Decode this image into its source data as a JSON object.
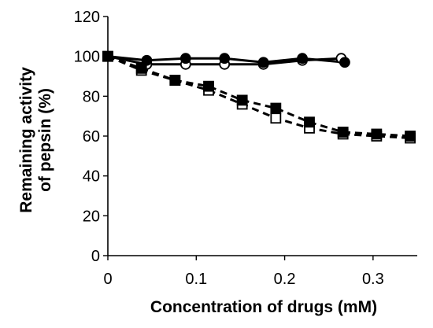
{
  "chart_data": {
    "type": "line",
    "xlabel": "Concentration of drugs (mM)",
    "ylabel_lines": [
      "Remaining activity",
      "of pepsin (%)"
    ],
    "xlim": [
      0,
      0.35
    ],
    "ylim": [
      0,
      120
    ],
    "xticks": [
      0,
      0.1,
      0.2,
      0.3
    ],
    "xtick_labels": [
      "0",
      "0.1",
      "0.2",
      "0.3"
    ],
    "yticks": [
      0,
      20,
      40,
      60,
      80,
      100,
      120
    ],
    "ytick_labels": [
      "0",
      "20",
      "40",
      "60",
      "80",
      "100",
      "120"
    ],
    "grid": false,
    "legend": "none",
    "series": [
      {
        "marker": "circle-open",
        "line": "solid",
        "color": "#000000",
        "x": [
          0,
          0.044,
          0.088,
          0.132,
          0.176,
          0.22,
          0.264
        ],
        "y": [
          100,
          96,
          96,
          96,
          96,
          98,
          99
        ]
      },
      {
        "marker": "circle-filled",
        "line": "solid",
        "color": "#000000",
        "x": [
          0,
          0.044,
          0.088,
          0.132,
          0.176,
          0.22,
          0.268
        ],
        "y": [
          100,
          98,
          99,
          99,
          97,
          99,
          97
        ]
      },
      {
        "marker": "square-open",
        "line": "dashed",
        "color": "#000000",
        "x": [
          0,
          0.038,
          0.076,
          0.114,
          0.152,
          0.19,
          0.228,
          0.266,
          0.304,
          0.342
        ],
        "y": [
          100,
          93,
          88,
          83,
          76,
          69,
          64,
          61,
          60,
          59
        ]
      },
      {
        "marker": "square-filled",
        "line": "dashed",
        "color": "#000000",
        "x": [
          0,
          0.038,
          0.076,
          0.114,
          0.152,
          0.19,
          0.228,
          0.266,
          0.304,
          0.342
        ],
        "y": [
          100,
          94,
          88,
          85,
          78,
          74,
          67,
          62,
          61,
          60
        ]
      }
    ]
  }
}
